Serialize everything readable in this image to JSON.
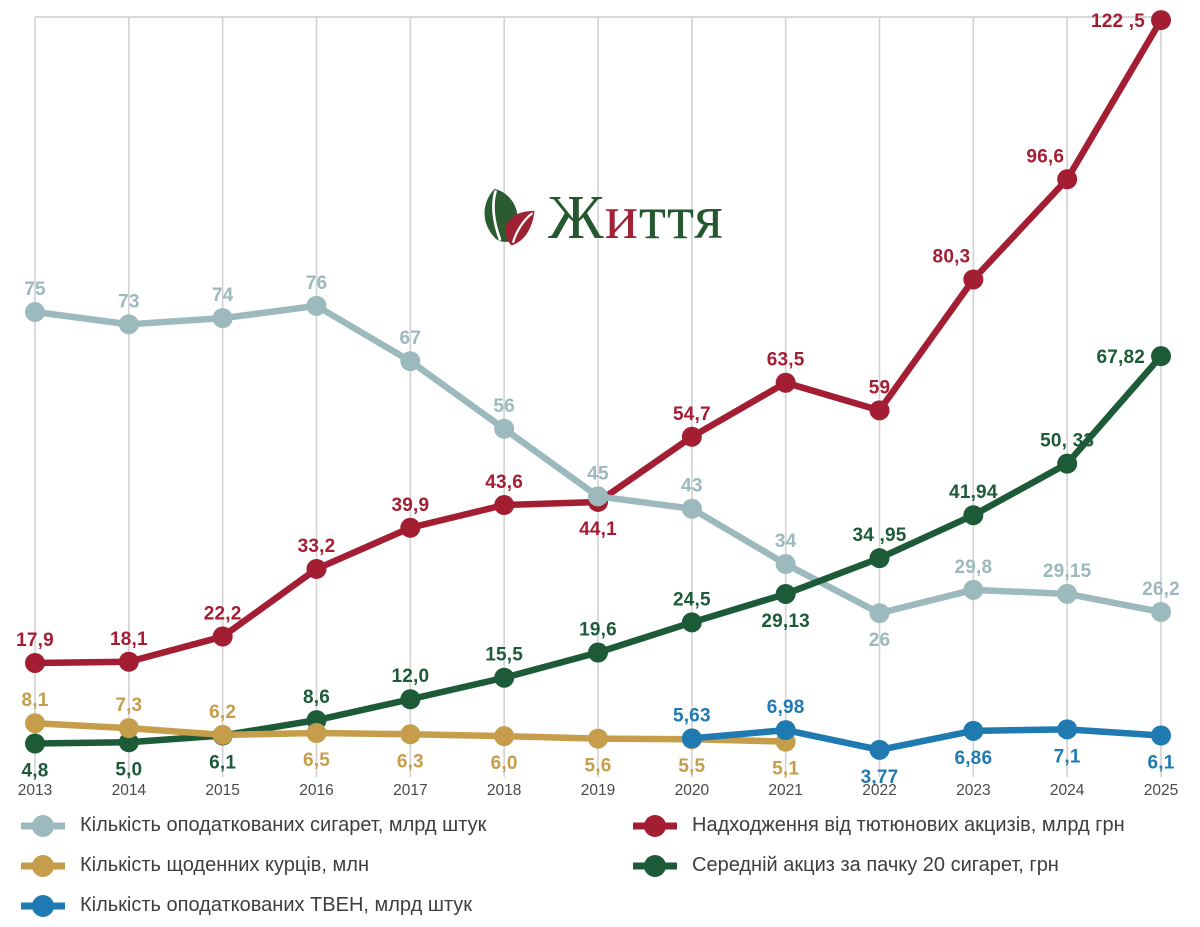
{
  "logo": {
    "parts": [
      {
        "text": "Ж",
        "color": "#26582f"
      },
      {
        "text": "и",
        "color": "#a32136"
      },
      {
        "text": "ття",
        "color": "#26582f"
      }
    ],
    "leaf_green": "#2b5c30",
    "leaf_red": "#9e2134"
  },
  "chart_data": {
    "type": "line",
    "x": [
      "2013",
      "2014",
      "2015",
      "2016",
      "2017",
      "2018",
      "2019",
      "2020",
      "2021",
      "2022",
      "2023",
      "2024",
      "2025"
    ],
    "ylim": [
      0,
      123
    ],
    "grid": "vertical",
    "legend_position": "bottom-two-columns",
    "colors": {
      "grid": "#d2d2d2",
      "axis_text": "#4a4a4a",
      "legend_text": "#3e3e3e"
    },
    "layout": {
      "x0": 35,
      "x1": 1161,
      "y_top": 17,
      "y_base": 773,
      "ymax": 123,
      "point_r": 10,
      "line_w": 6.5,
      "x_label_y": 795
    },
    "series": [
      {
        "id": "excise-revenue",
        "name": "Надходження від тютюнових акцизів, млрд грн",
        "color": "#a41e33",
        "values": [
          17.9,
          18.1,
          22.2,
          33.2,
          39.9,
          43.6,
          44.1,
          54.7,
          63.5,
          59,
          80.3,
          96.6,
          122.5
        ],
        "labels": [
          "17,9",
          "18,1",
          "22,2",
          "33,2",
          "39,9",
          "43,6",
          "44,1",
          "54,7",
          "63,5",
          "59",
          "80,3",
          "96,6",
          "122 ,5"
        ],
        "label_pos": [
          "a",
          "a",
          "a",
          "a",
          "a",
          "a",
          "b",
          "a",
          "a",
          "a",
          "ae",
          "ae",
          "l"
        ]
      },
      {
        "id": "taxed-cigarettes",
        "name": "Кількість оподаткованих сигарет, млрд штук",
        "color": "#9cb9bd",
        "values": [
          75,
          73,
          74,
          76,
          67,
          56,
          45,
          43,
          34,
          26,
          29.8,
          29.15,
          26.2
        ],
        "labels": [
          "75",
          "73",
          "74",
          "76",
          "67",
          "56",
          "45",
          "43",
          "34",
          "26",
          "29,8",
          "29,15",
          "26,2"
        ],
        "label_pos": [
          "a",
          "a",
          "a",
          "a",
          "a",
          "a",
          "a",
          "a",
          "a",
          "b",
          "a",
          "a",
          "a"
        ]
      },
      {
        "id": "avg-excise-pack",
        "name": "Середній акциз за пачку 20 сигарет, грн",
        "color": "#1d5b38",
        "values": [
          4.8,
          5.0,
          6.1,
          8.6,
          12.0,
          15.5,
          19.6,
          24.5,
          29.13,
          34.95,
          41.94,
          50.33,
          67.82
        ],
        "labels": [
          "4,8",
          "5,0",
          "6,1",
          "8,6",
          "12,0",
          "15,5",
          "19,6",
          "24,5",
          "29,13",
          "34 ,95",
          "41,94",
          "50, 33",
          "67,82"
        ],
        "label_pos": [
          "b",
          "b",
          "b",
          "a",
          "a",
          "a",
          "a",
          "a",
          "b",
          "a",
          "a",
          "a",
          "l"
        ]
      },
      {
        "id": "daily-smokers",
        "name": "Кількість щоденних курців, млн",
        "color": "#c69d4b",
        "values": [
          8.1,
          7.3,
          6.2,
          6.5,
          6.3,
          6.0,
          5.6,
          5.5,
          5.1,
          null,
          null,
          null,
          null
        ],
        "labels": [
          "8,1",
          "7,3",
          "6,2",
          "6,5",
          "6,3",
          "6,0",
          "5,6",
          "5,5",
          "5,1",
          "",
          "",
          "",
          ""
        ],
        "label_pos": [
          "a",
          "a",
          "a",
          "b",
          "b",
          "b",
          "b",
          "b",
          "b",
          "",
          "",
          "",
          ""
        ]
      },
      {
        "id": "taxed-tven",
        "name": "Кількість оподаткованих ТВЕН, млрд штук",
        "color": "#1e7ab1",
        "values": [
          null,
          null,
          null,
          null,
          null,
          null,
          null,
          5.63,
          6.98,
          3.77,
          6.86,
          7.1,
          6.1
        ],
        "labels": [
          "",
          "",
          "",
          "",
          "",
          "",
          "",
          "5,63",
          "6,98",
          "3,77",
          "6,86",
          "7,1",
          "6,1"
        ],
        "label_pos": [
          "",
          "",
          "",
          "",
          "",
          "",
          "",
          "a",
          "a",
          "b",
          "b",
          "b",
          "b"
        ]
      }
    ]
  }
}
